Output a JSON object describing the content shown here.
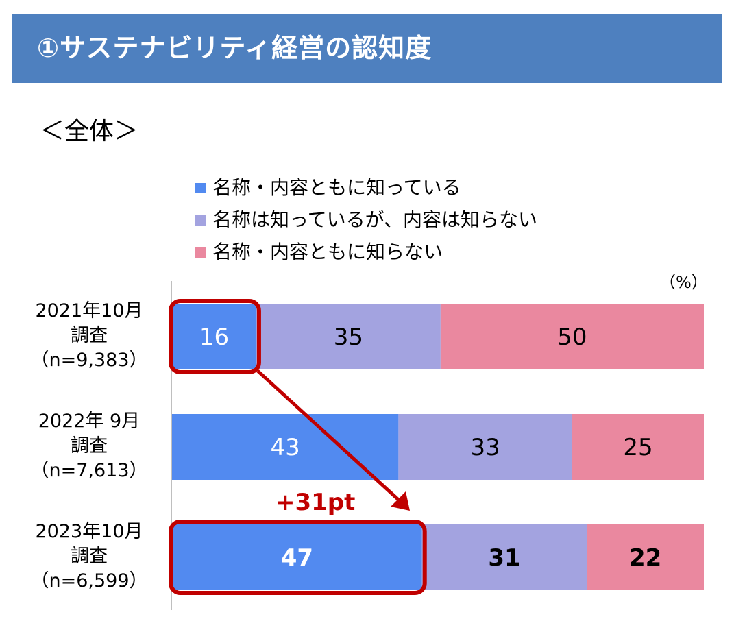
{
  "header": {
    "title": "①サステナビリティ経営の認知度"
  },
  "subtitle": "＜全体＞",
  "unit": "（%）",
  "colors": {
    "header_bg": "#4e80bf",
    "series": [
      "#528af0",
      "#a3a3e0",
      "#ea889f"
    ],
    "highlight": "#c00000"
  },
  "legend": [
    "名称・内容ともに知っている",
    "名称は知っているが、内容は知らない",
    "名称・内容ともに知らない"
  ],
  "rows": [
    {
      "line1": "2021年10月",
      "line2": "調査",
      "line3": "（n=9,383）"
    },
    {
      "line1": "2022年 9月",
      "line2": "調査",
      "line3": "（n=7,613）"
    },
    {
      "line1": "2023年10月",
      "line2": "調査",
      "line3": "（n=6,599）"
    }
  ],
  "callout": {
    "text": "+31pt"
  },
  "chart_data": {
    "type": "bar",
    "orientation": "horizontal",
    "stacked": true,
    "categories": [
      "2021年10月調査",
      "2022年 9月調査",
      "2023年10月調査"
    ],
    "series": [
      {
        "name": "名称・内容ともに知っている",
        "values": [
          16,
          43,
          47
        ]
      },
      {
        "name": "名称は知っているが、内容は知らない",
        "values": [
          35,
          33,
          31
        ]
      },
      {
        "name": "名称・内容ともに知らない",
        "values": [
          50,
          25,
          22
        ]
      }
    ],
    "unit": "%",
    "annotations": [
      {
        "text": "+31pt",
        "from_category": "2021年10月調査",
        "to_category": "2023年10月調査",
        "series": "名称・内容ともに知っている"
      }
    ]
  }
}
